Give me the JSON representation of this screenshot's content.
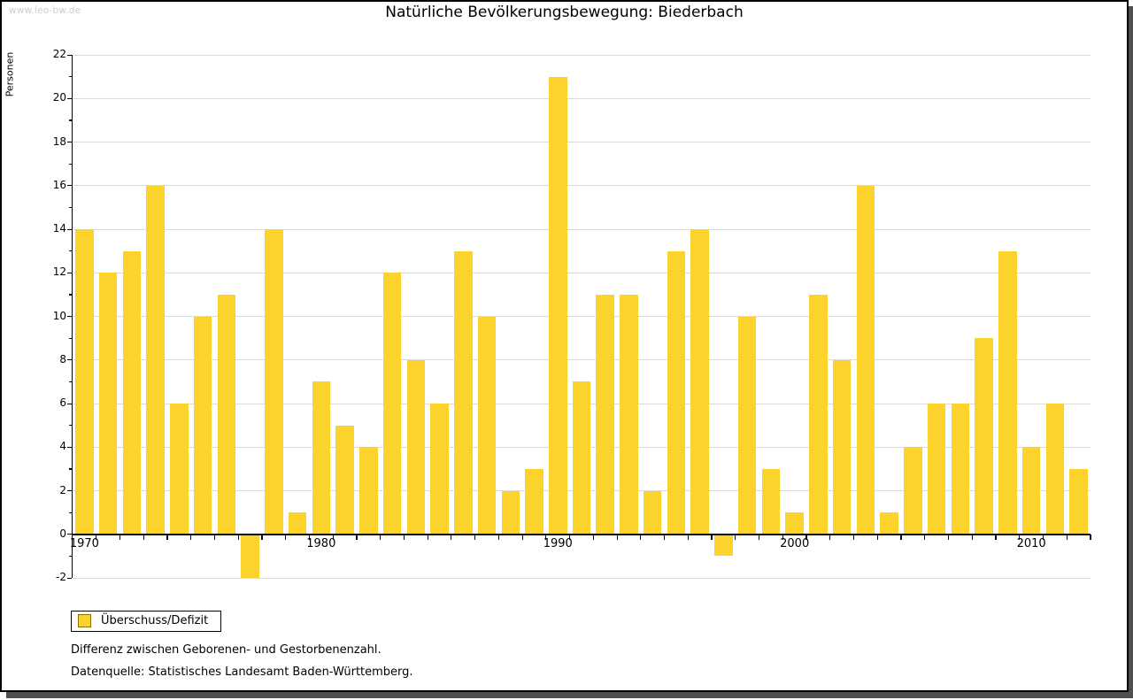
{
  "watermark": "www.leo-bw.de",
  "title": "Natürliche Bevölkerungsbewegung: Biederbach",
  "legend": {
    "label": "Überschuss/Defizit"
  },
  "footnotes": [
    "Differenz zwischen Geborenen- und Gestorbenenzahl.",
    "Datenquelle: Statistisches Landesamt Baden-Württemberg."
  ],
  "colors": {
    "bar": "#FCD32D",
    "legend_swatch_border": "#8B7300",
    "grid": "#dadada",
    "axis": "#000000",
    "frame_shadow": "#4e4e4e",
    "watermark": "#cccccc"
  },
  "chart_data": {
    "type": "bar",
    "title": "Natürliche Bevölkerungsbewegung: Biederbach",
    "xlabel": "",
    "ylabel": "Personen",
    "series_name": "Überschuss/Defizit",
    "x": [
      1970,
      1971,
      1972,
      1973,
      1974,
      1975,
      1976,
      1977,
      1978,
      1979,
      1980,
      1981,
      1982,
      1983,
      1984,
      1985,
      1986,
      1987,
      1988,
      1989,
      1990,
      1991,
      1992,
      1993,
      1994,
      1995,
      1996,
      1997,
      1998,
      1999,
      2000,
      2001,
      2002,
      2003,
      2004,
      2005,
      2006,
      2007,
      2008,
      2009,
      2010,
      2011,
      2012
    ],
    "values": [
      14,
      12,
      13,
      16,
      6,
      10,
      11,
      -2,
      14,
      1,
      7,
      5,
      4,
      12,
      8,
      6,
      13,
      10,
      2,
      3,
      21,
      7,
      11,
      11,
      2,
      13,
      14,
      -1,
      10,
      3,
      1,
      11,
      8,
      16,
      1,
      4,
      6,
      6,
      9,
      13,
      4,
      6,
      3
    ],
    "ylim": [
      -2,
      22
    ],
    "ytick_labels": [
      22,
      20,
      18,
      16,
      14,
      12,
      10,
      8,
      6,
      4,
      2,
      0,
      -2
    ],
    "ytick_minor_step": 1,
    "xtick_labels": [
      "1970",
      "1980",
      "1990",
      "2000",
      "2010"
    ],
    "grid": true,
    "legend_position": "bottom-left"
  }
}
